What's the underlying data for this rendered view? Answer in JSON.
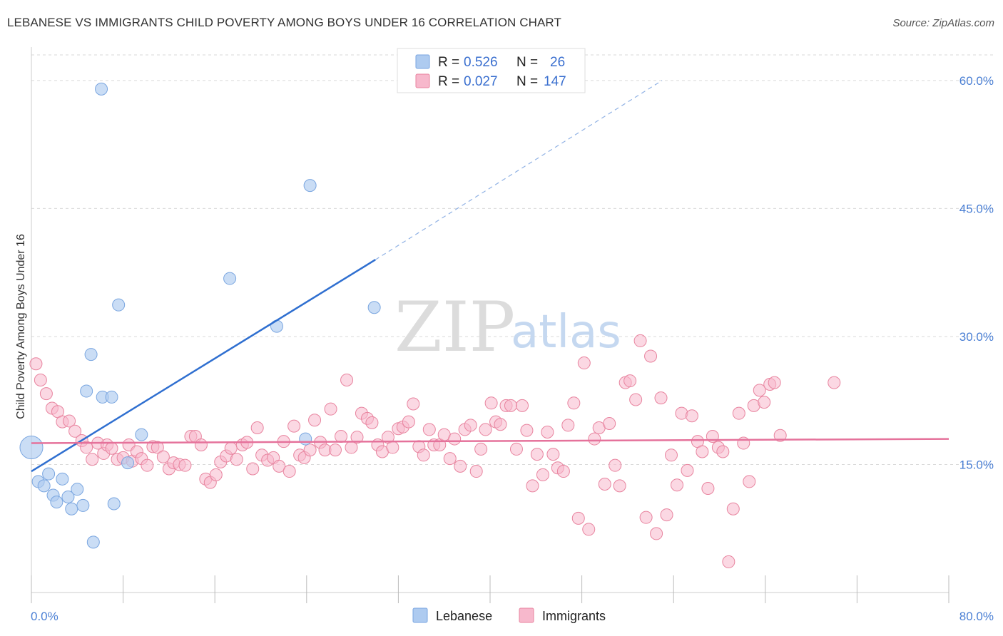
{
  "title": "LEBANESE VS IMMIGRANTS CHILD POVERTY AMONG BOYS UNDER 16 CORRELATION CHART",
  "source": "Source: ZipAtlas.com",
  "watermark": {
    "zip": "ZIP",
    "atlas": "atlas"
  },
  "legend_top": {
    "rows": [
      {
        "r_label": "R =",
        "r_value": "0.526",
        "n_label": "N =",
        "n_value": "26",
        "color": "#aecbf0"
      },
      {
        "r_label": "R =",
        "r_value": "0.027",
        "n_label": "N =",
        "n_value": "147",
        "color": "#f7b8cc"
      }
    ]
  },
  "legend_bottom": [
    {
      "label": "Lebanese",
      "color": "#aecbf0"
    },
    {
      "label": "Immigrants",
      "color": "#f7b8cc"
    }
  ],
  "chart_data": {
    "type": "scatter",
    "title": "LEBANESE VS IMMIGRANTS CHILD POVERTY AMONG BOYS UNDER 16 CORRELATION CHART",
    "xlabel": "",
    "ylabel": "Child Poverty Among Boys Under 16",
    "xlim": [
      0,
      80
    ],
    "ylim": [
      0,
      63
    ],
    "x_tick_labels": [
      "0.0%",
      "80.0%"
    ],
    "y_ticks": [
      15,
      30,
      45,
      60
    ],
    "y_tick_labels": [
      "15.0%",
      "30.0%",
      "45.0%",
      "60.0%"
    ],
    "grid": true,
    "legend_position": "top-center",
    "series": [
      {
        "name": "Lebanese",
        "color": "#aecbf0",
        "stroke": "#7aa6e0",
        "points": [
          [
            0.0,
            17.0
          ],
          [
            0.6,
            13.0
          ],
          [
            1.1,
            12.5
          ],
          [
            1.5,
            13.9
          ],
          [
            1.9,
            11.4
          ],
          [
            2.2,
            10.6
          ],
          [
            2.7,
            13.3
          ],
          [
            3.2,
            11.2
          ],
          [
            3.5,
            9.8
          ],
          [
            4.0,
            12.1
          ],
          [
            4.5,
            10.2
          ],
          [
            4.8,
            23.6
          ],
          [
            5.2,
            27.9
          ],
          [
            5.4,
            5.9
          ],
          [
            6.1,
            59.0
          ],
          [
            6.2,
            22.9
          ],
          [
            7.0,
            22.9
          ],
          [
            7.2,
            10.4
          ],
          [
            7.6,
            33.7
          ],
          [
            8.4,
            15.2
          ],
          [
            9.6,
            18.5
          ],
          [
            17.3,
            36.8
          ],
          [
            21.4,
            31.2
          ],
          [
            23.9,
            18.0
          ],
          [
            24.3,
            47.7
          ],
          [
            29.9,
            33.4
          ]
        ],
        "trend": {
          "x_start": 0.0,
          "y_start": 14.2,
          "x_solid_end": 30.0,
          "y_solid_end": 39.0,
          "x_dash_end": 55.0,
          "y_dash_end": 60.0
        }
      },
      {
        "name": "Immigrants",
        "color": "#f7b8cc",
        "stroke": "#e8849f",
        "points": [
          [
            0.4,
            26.8
          ],
          [
            0.8,
            24.9
          ],
          [
            1.3,
            23.3
          ],
          [
            1.8,
            21.6
          ],
          [
            2.3,
            21.2
          ],
          [
            2.7,
            20.0
          ],
          [
            3.3,
            20.1
          ],
          [
            3.8,
            18.9
          ],
          [
            4.4,
            17.8
          ],
          [
            4.8,
            17.0
          ],
          [
            5.3,
            15.6
          ],
          [
            5.8,
            17.5
          ],
          [
            6.3,
            16.3
          ],
          [
            6.6,
            17.3
          ],
          [
            7.0,
            16.9
          ],
          [
            7.5,
            15.6
          ],
          [
            8.0,
            15.8
          ],
          [
            8.5,
            17.3
          ],
          [
            8.8,
            15.4
          ],
          [
            9.2,
            16.5
          ],
          [
            9.6,
            15.7
          ],
          [
            10.1,
            14.9
          ],
          [
            10.6,
            17.1
          ],
          [
            11.0,
            17.0
          ],
          [
            11.5,
            15.9
          ],
          [
            12.0,
            14.5
          ],
          [
            12.4,
            15.2
          ],
          [
            12.9,
            15.0
          ],
          [
            13.4,
            14.9
          ],
          [
            13.9,
            18.3
          ],
          [
            14.3,
            18.3
          ],
          [
            14.8,
            17.3
          ],
          [
            15.2,
            13.3
          ],
          [
            15.6,
            12.9
          ],
          [
            16.1,
            13.8
          ],
          [
            16.5,
            15.3
          ],
          [
            17.0,
            16.0
          ],
          [
            17.4,
            16.9
          ],
          [
            17.9,
            15.6
          ],
          [
            18.4,
            17.3
          ],
          [
            18.8,
            17.6
          ],
          [
            19.3,
            14.5
          ],
          [
            19.7,
            19.3
          ],
          [
            20.1,
            16.1
          ],
          [
            20.6,
            15.5
          ],
          [
            21.1,
            15.8
          ],
          [
            21.6,
            14.8
          ],
          [
            22.0,
            17.7
          ],
          [
            22.5,
            14.2
          ],
          [
            22.9,
            19.5
          ],
          [
            23.4,
            16.1
          ],
          [
            23.8,
            15.8
          ],
          [
            24.3,
            16.7
          ],
          [
            24.7,
            20.2
          ],
          [
            25.2,
            17.6
          ],
          [
            25.6,
            16.7
          ],
          [
            26.1,
            21.5
          ],
          [
            26.5,
            16.7
          ],
          [
            27.0,
            18.3
          ],
          [
            27.5,
            24.9
          ],
          [
            27.9,
            17.0
          ],
          [
            28.4,
            18.2
          ],
          [
            28.8,
            21.0
          ],
          [
            29.3,
            20.4
          ],
          [
            29.7,
            19.9
          ],
          [
            30.2,
            17.3
          ],
          [
            30.6,
            16.5
          ],
          [
            31.1,
            18.2
          ],
          [
            31.5,
            17.0
          ],
          [
            32.0,
            19.2
          ],
          [
            32.4,
            19.4
          ],
          [
            32.9,
            20.0
          ],
          [
            33.3,
            22.1
          ],
          [
            33.8,
            17.1
          ],
          [
            34.2,
            16.1
          ],
          [
            34.7,
            19.1
          ],
          [
            35.1,
            17.3
          ],
          [
            35.6,
            17.3
          ],
          [
            36.0,
            18.5
          ],
          [
            36.5,
            15.7
          ],
          [
            36.9,
            18.0
          ],
          [
            37.4,
            14.8
          ],
          [
            37.8,
            19.1
          ],
          [
            38.3,
            19.6
          ],
          [
            38.8,
            14.2
          ],
          [
            39.2,
            16.8
          ],
          [
            39.6,
            19.1
          ],
          [
            40.1,
            22.2
          ],
          [
            40.5,
            20.0
          ],
          [
            40.9,
            19.7
          ],
          [
            41.4,
            21.9
          ],
          [
            41.8,
            21.9
          ],
          [
            42.3,
            16.8
          ],
          [
            42.8,
            21.9
          ],
          [
            43.2,
            19.0
          ],
          [
            43.7,
            12.5
          ],
          [
            44.1,
            16.2
          ],
          [
            44.6,
            13.8
          ],
          [
            45.0,
            18.8
          ],
          [
            45.5,
            16.2
          ],
          [
            45.9,
            14.6
          ],
          [
            46.4,
            14.2
          ],
          [
            46.8,
            19.6
          ],
          [
            47.3,
            22.2
          ],
          [
            47.7,
            8.7
          ],
          [
            48.2,
            26.9
          ],
          [
            48.6,
            7.4
          ],
          [
            49.1,
            18.0
          ],
          [
            49.5,
            19.3
          ],
          [
            50.0,
            12.7
          ],
          [
            50.4,
            19.8
          ],
          [
            50.9,
            14.9
          ],
          [
            51.3,
            12.5
          ],
          [
            51.8,
            24.6
          ],
          [
            52.2,
            24.8
          ],
          [
            52.7,
            22.6
          ],
          [
            53.1,
            29.5
          ],
          [
            53.6,
            8.8
          ],
          [
            54.0,
            27.7
          ],
          [
            54.5,
            6.9
          ],
          [
            54.9,
            22.8
          ],
          [
            55.4,
            9.1
          ],
          [
            55.8,
            16.1
          ],
          [
            56.3,
            12.6
          ],
          [
            56.7,
            21.0
          ],
          [
            57.2,
            14.3
          ],
          [
            57.6,
            20.7
          ],
          [
            58.1,
            17.7
          ],
          [
            58.5,
            16.5
          ],
          [
            59.0,
            12.2
          ],
          [
            59.4,
            18.3
          ],
          [
            59.9,
            17.0
          ],
          [
            60.3,
            16.5
          ],
          [
            60.8,
            3.6
          ],
          [
            61.2,
            9.8
          ],
          [
            61.7,
            21.0
          ],
          [
            62.1,
            17.5
          ],
          [
            62.6,
            13.0
          ],
          [
            63.0,
            21.9
          ],
          [
            63.5,
            23.7
          ],
          [
            63.9,
            22.3
          ],
          [
            64.4,
            24.4
          ],
          [
            64.8,
            24.6
          ],
          [
            65.3,
            18.4
          ],
          [
            70.0,
            24.6
          ]
        ],
        "trend": {
          "x_start": 0.0,
          "y_start": 17.5,
          "x_end": 80.0,
          "y_end": 18.0
        }
      }
    ]
  }
}
